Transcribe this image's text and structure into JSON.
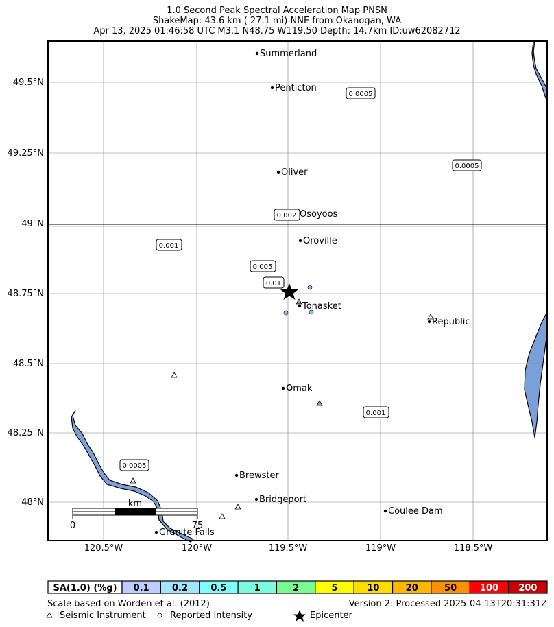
{
  "title": {
    "line1": "1.0 Second Peak Spectral Acceleration Map PNSN",
    "line2": "ShakeMap: 43.6 km (  27.1 mi) NNE from Okanogan, WA",
    "line3": "Apr 13, 2025 01:46:58 UTC M3.1 N48.75 W119.50 Depth: 14.7km ID:uw62082712"
  },
  "axes": {
    "lat_labels": [
      "49.5°N",
      "49.25°N",
      "49°N",
      "48.75°N",
      "48.5°N",
      "48.25°N",
      "48°N"
    ],
    "lon_labels": [
      "120.5°W",
      "120°W",
      "119.5°W",
      "119°W",
      "118.5°W"
    ]
  },
  "cities": [
    {
      "name": "Summerland"
    },
    {
      "name": "Penticton"
    },
    {
      "name": "Oliver"
    },
    {
      "name": "Osoyoos"
    },
    {
      "name": "Oroville"
    },
    {
      "name": "Tonasket"
    },
    {
      "name": "Republic"
    },
    {
      "name": "Omak"
    },
    {
      "name": "Brewster"
    },
    {
      "name": "Bridgeport"
    },
    {
      "name": "Coulee Dam"
    },
    {
      "name": "Granite Falls"
    }
  ],
  "contour_labels": [
    "0.0005",
    "0.0005",
    "0.002",
    "0.001",
    "0.005",
    "0.01",
    "0.001",
    "0.0005"
  ],
  "scale_bar": {
    "unit": "km",
    "start": "0",
    "end": "75"
  },
  "colorbar": {
    "label": "SA(1.0) (%g)",
    "values": [
      "0.1",
      "0.2",
      "0.5",
      "1",
      "2",
      "5",
      "10",
      "20",
      "50",
      "100",
      "200"
    ],
    "colors": [
      "#bfccff",
      "#a0e6ff",
      "#80ffff",
      "#7efbdf",
      "#7af894",
      "#ffff00",
      "#ffdd00",
      "#ffb700",
      "#ff9100",
      "#ff0000",
      "#c80000"
    ]
  },
  "footer": {
    "scale_note": "Scale based on Worden et al. (2012)",
    "version": "Version 2: Processed 2025-04-13T20:31:31Z",
    "legend_instrument": "Seismic Instrument",
    "legend_intensity": "Reported Intensity",
    "legend_epicenter": "Epicenter"
  },
  "colors": {
    "water": "#7b9fd8",
    "grid": "#808080"
  }
}
